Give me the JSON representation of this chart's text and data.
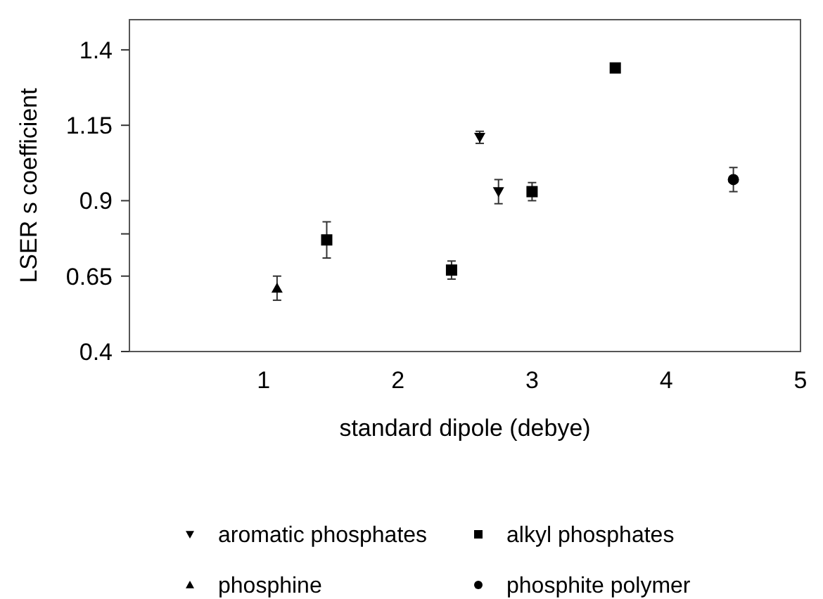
{
  "chart_data": {
    "type": "scatter",
    "xlabel": "standard dipole (debye)",
    "ylabel": "LSER s coefficient",
    "xlim": [
      0,
      5
    ],
    "xticks": [
      1,
      2,
      3,
      4,
      5
    ],
    "ylim": [
      0.4,
      1.5
    ],
    "yticks": [
      0.4,
      0.65,
      {
        "value": 0.79,
        "label": null
      },
      0.9,
      1.15,
      1.4
    ],
    "grid": false,
    "legend": "bottom",
    "series": [
      {
        "name": "aromatic phosphates",
        "color": "#000000",
        "marker": "triangle-down",
        "x": [
          2.61,
          2.75
        ],
        "values": [
          1.11,
          0.93
        ],
        "errors": [
          0.02,
          0.04
        ]
      },
      {
        "name": "alkyl phosphates",
        "color": "#000000",
        "marker": "square",
        "x": [
          1.47,
          2.4,
          3.0,
          3.62
        ],
        "values": [
          0.77,
          0.67,
          0.93,
          1.34
        ],
        "errors": [
          0.06,
          0.03,
          0.03,
          null
        ]
      },
      {
        "name": "phosphine",
        "color": "#000000",
        "marker": "triangle",
        "x": [
          1.1
        ],
        "values": [
          0.61
        ],
        "errors": [
          0.04
        ]
      },
      {
        "name": "phosphite polymer",
        "color": "#000000",
        "marker": "circle",
        "x": [
          4.5
        ],
        "values": [
          0.97
        ],
        "errors": [
          0.04
        ]
      }
    ]
  }
}
